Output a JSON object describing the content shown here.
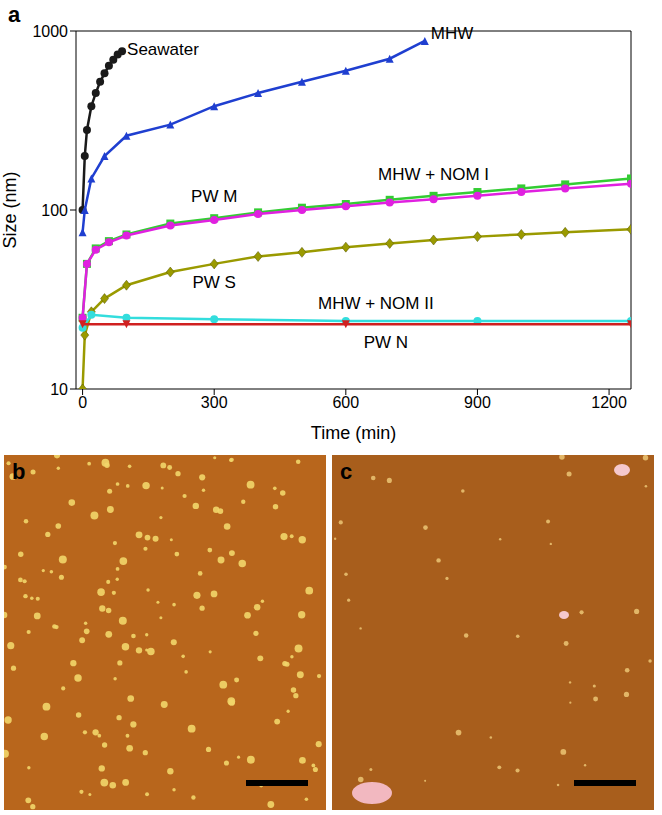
{
  "panel_label": "a",
  "chart_data": {
    "type": "scatter",
    "log": "y",
    "grid": false,
    "xlabel": "Time (min)",
    "ylabel": "Size (nm)",
    "xlim": [
      -15,
      1250
    ],
    "xticks": [
      0,
      300,
      600,
      900,
      1200
    ],
    "ylim": [
      10,
      1000
    ],
    "yticks": [
      10,
      100,
      1000
    ],
    "series": [
      {
        "name": "Seawater",
        "color": "#1a1a1a",
        "marker": "circle",
        "x": [
          0,
          5,
          10,
          20,
          30,
          40,
          50,
          60,
          70,
          80,
          90
        ],
        "values": [
          100,
          200,
          280,
          380,
          450,
          520,
          580,
          640,
          690,
          740,
          770
        ]
      },
      {
        "name": "MHW",
        "color": "#1f3fd0",
        "marker": "triangle",
        "x": [
          0,
          5,
          20,
          50,
          100,
          200,
          300,
          400,
          500,
          600,
          700,
          780
        ],
        "values": [
          75,
          100,
          150,
          200,
          260,
          300,
          380,
          450,
          520,
          600,
          700,
          880
        ]
      },
      {
        "name": "MHW + NOM I",
        "color": "#33cc33",
        "marker": "square",
        "x": [
          0,
          10,
          30,
          60,
          100,
          200,
          300,
          400,
          500,
          600,
          700,
          800,
          900,
          1000,
          1100,
          1250
        ],
        "values": [
          25,
          50,
          61,
          67,
          73,
          84,
          90,
          97,
          103,
          108,
          114,
          120,
          126,
          132,
          139,
          150
        ]
      },
      {
        "name": "PW M",
        "color": "#e020e0",
        "marker": "circle",
        "x": [
          0,
          10,
          30,
          60,
          100,
          200,
          300,
          400,
          500,
          600,
          700,
          800,
          900,
          1000,
          1100,
          1250
        ],
        "values": [
          25,
          50,
          60,
          66,
          72,
          82,
          88,
          95,
          100,
          105,
          110,
          115,
          120,
          126,
          132,
          140
        ]
      },
      {
        "name": "PW S",
        "color": "#9a9a00",
        "marker": "diamond",
        "x": [
          0,
          5,
          20,
          50,
          100,
          200,
          300,
          400,
          500,
          600,
          700,
          800,
          900,
          1000,
          1100,
          1250
        ],
        "values": [
          10,
          20,
          27,
          32,
          38,
          45,
          50,
          55,
          58,
          62,
          65,
          68,
          71,
          73,
          75,
          78
        ]
      },
      {
        "name": "MHW + NOM II",
        "color": "#33dddd",
        "marker": "circle",
        "x": [
          0,
          20,
          100,
          300,
          600,
          900,
          1250
        ],
        "values": [
          22,
          26,
          25,
          24.5,
          24,
          24,
          24
        ]
      },
      {
        "name": "PW N",
        "color": "#d02020",
        "marker": "triangle-down",
        "x": [
          0,
          100,
          600,
          1250
        ],
        "values": [
          23,
          23,
          23,
          23
        ]
      }
    ]
  },
  "images": [
    {
      "panel_label": "b"
    },
    {
      "panel_label": "c"
    }
  ]
}
